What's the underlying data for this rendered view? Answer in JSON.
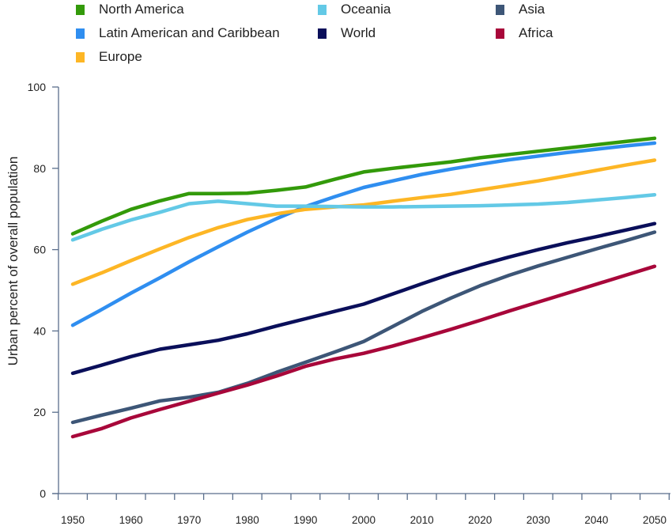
{
  "chart_data": {
    "type": "line",
    "title": "",
    "xlabel": "",
    "ylabel": "Urban percent of overall population",
    "xlim": [
      1950,
      2050
    ],
    "ylim": [
      0,
      100
    ],
    "x": [
      1950,
      1955,
      1960,
      1965,
      1970,
      1975,
      1980,
      1985,
      1990,
      1995,
      2000,
      2005,
      2010,
      2015,
      2020,
      2025,
      2030,
      2035,
      2040,
      2045,
      2050
    ],
    "xticks": [
      "1950",
      "1960",
      "1970",
      "1980",
      "1990",
      "2000",
      "2010",
      "2020",
      "2030",
      "2040",
      "2050"
    ],
    "yticks": [
      "0",
      "20",
      "40",
      "60",
      "80",
      "100"
    ],
    "grid": false,
    "legend_position": "top",
    "series": [
      {
        "name": "North America",
        "color": "#339a0a",
        "values": [
          63.9,
          67,
          69.9,
          72,
          73.8,
          73.8,
          73.9,
          74.6,
          75.4,
          77.3,
          79.1,
          80,
          80.8,
          81.6,
          82.6,
          83.4,
          84.2,
          85,
          85.8,
          86.6,
          87.4
        ]
      },
      {
        "name": "Latin American and Caribbean",
        "color": "#2f8ef0",
        "values": [
          41.4,
          45.3,
          49.3,
          53.1,
          57,
          60.7,
          64.3,
          67.6,
          70.6,
          73,
          75.3,
          76.9,
          78.5,
          79.8,
          81,
          82.1,
          83,
          83.9,
          84.7,
          85.5,
          86.2
        ]
      },
      {
        "name": "Europe",
        "color": "#fdb625",
        "values": [
          51.5,
          54.3,
          57.3,
          60.2,
          63,
          65.4,
          67.4,
          68.8,
          69.9,
          70.5,
          71,
          71.9,
          72.8,
          73.6,
          74.7,
          75.8,
          76.9,
          78.2,
          79.5,
          80.8,
          82
        ]
      },
      {
        "name": "Oceania",
        "color": "#63c9e6",
        "values": [
          62.4,
          65,
          67.3,
          69.2,
          71.3,
          71.9,
          71.3,
          70.7,
          70.7,
          70.6,
          70.5,
          70.5,
          70.6,
          70.7,
          70.8,
          71,
          71.2,
          71.6,
          72.2,
          72.8,
          73.5
        ]
      },
      {
        "name": "World",
        "color": "#0a0f5a",
        "values": [
          29.6,
          31.6,
          33.7,
          35.5,
          36.6,
          37.7,
          39.3,
          41.2,
          43,
          44.8,
          46.6,
          49.1,
          51.6,
          54,
          56.2,
          58.2,
          60,
          61.7,
          63.2,
          64.8,
          66.4
        ]
      },
      {
        "name": "Asia",
        "color": "#3d5677",
        "values": [
          17.5,
          19.3,
          21,
          22.8,
          23.7,
          24.9,
          27.1,
          29.8,
          32.3,
          34.8,
          37.4,
          41.1,
          44.8,
          48.1,
          51.1,
          53.7,
          56,
          58.1,
          60.2,
          62.2,
          64.3
        ]
      },
      {
        "name": "Africa",
        "color": "#a8073a",
        "values": [
          14,
          16,
          18.6,
          20.7,
          22.7,
          24.7,
          26.7,
          28.9,
          31.3,
          33.1,
          34.5,
          36.3,
          38.3,
          40.4,
          42.6,
          44.9,
          47.1,
          49.3,
          51.5,
          53.7,
          55.9
        ]
      }
    ]
  }
}
